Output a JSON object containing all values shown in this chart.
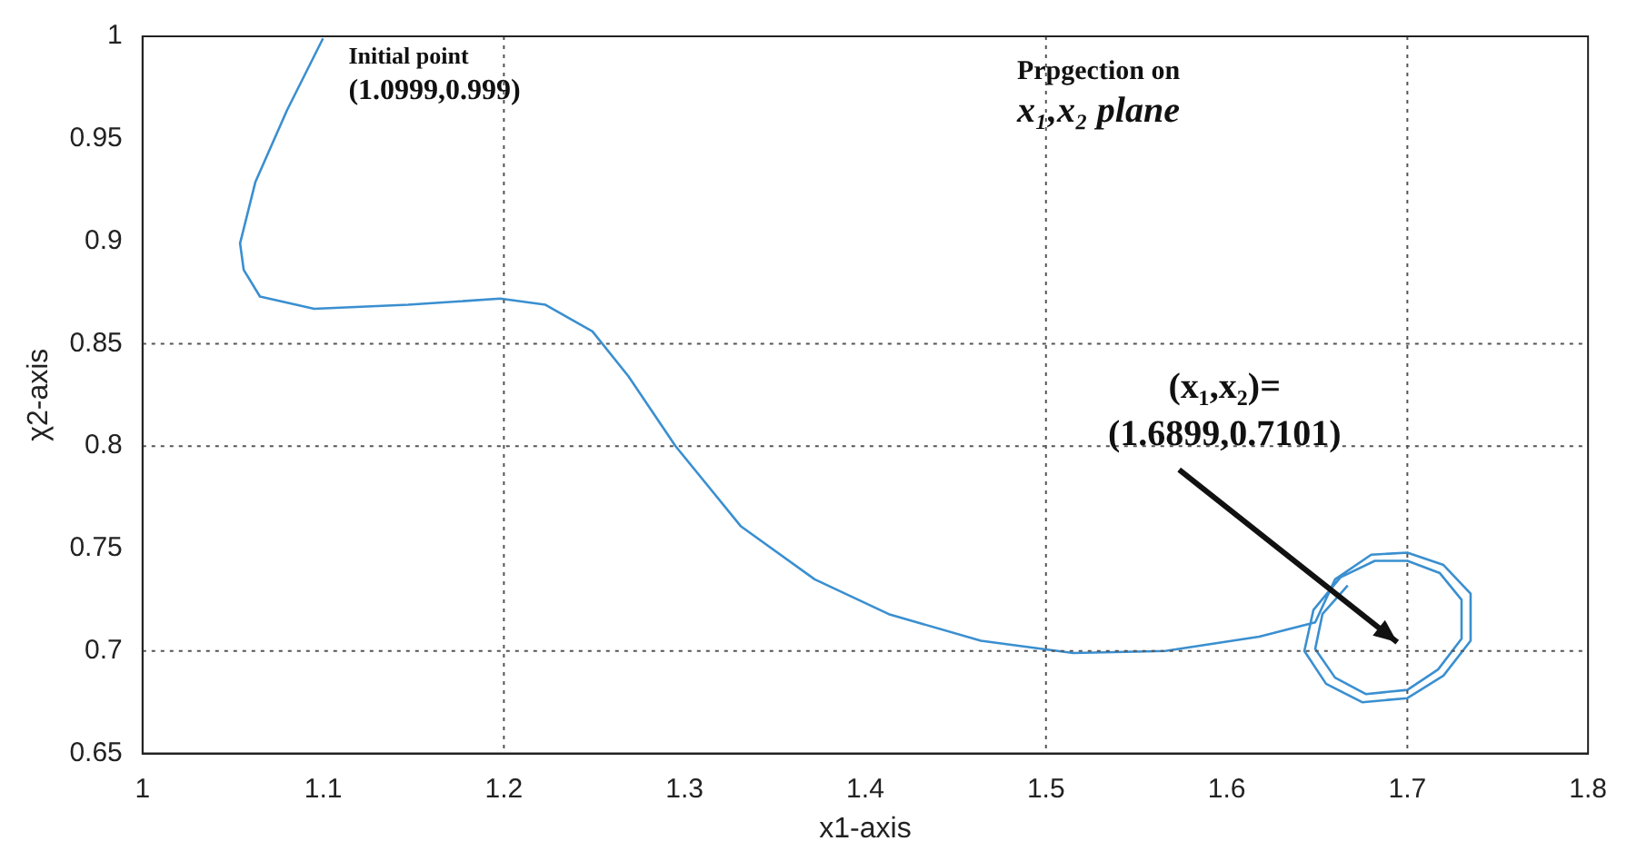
{
  "chart_data": {
    "type": "line",
    "xlabel": "x1-axis",
    "ylabel": "χ2-axis",
    "xlim": [
      1,
      1.8
    ],
    "xticks": [
      1,
      1.1,
      1.2,
      1.3,
      1.4,
      1.5,
      1.6,
      1.7,
      1.8
    ],
    "ylim": [
      0.65,
      1
    ],
    "yticks": [
      0.65,
      0.7,
      0.75,
      0.8,
      0.85,
      0.9,
      0.95,
      1
    ],
    "grid": false,
    "legend": false,
    "marker": "none",
    "line_style": "solid",
    "ref_lines": [
      {
        "axis": "x",
        "value": 1.2,
        "color": "#555555",
        "line_style": "dotted"
      },
      {
        "axis": "x",
        "value": 1.5,
        "color": "#555555",
        "line_style": "dotted"
      },
      {
        "axis": "x",
        "value": 1.7,
        "color": "#555555",
        "line_style": "dotted"
      },
      {
        "axis": "y",
        "value": 0.85,
        "color": "#555555",
        "line_style": "dotted"
      },
      {
        "axis": "y",
        "value": 0.8,
        "color": "#555555",
        "line_style": "dotted"
      },
      {
        "axis": "y",
        "value": 0.7,
        "color": "#555555",
        "line_style": "dotted"
      }
    ],
    "annotations": [
      {
        "text": "Initial point\n(1.0999,0.999)",
        "x": 1.0999,
        "y": 0.999
      },
      "Prpgection on\nx₁,x₂ plane",
      "(x₁,x₂)=\n(1.6899,0.7101)"
    ],
    "series": [
      {
        "color": "#3a8fd0",
        "x": [
          1.0999,
          1.08,
          1.0625,
          1.054,
          1.056,
          1.065,
          1.095,
          1.147,
          1.198,
          1.223,
          1.249,
          1.269,
          1.295,
          1.331,
          1.372,
          1.413,
          1.464,
          1.515,
          1.566,
          1.618,
          1.649,
          1.66,
          1.68,
          1.7,
          1.72,
          1.735,
          1.735,
          1.72,
          1.7,
          1.675,
          1.655,
          1.643,
          1.648,
          1.663,
          1.682,
          1.7,
          1.718,
          1.73,
          1.73,
          1.717,
          1.7,
          1.677,
          1.66,
          1.649,
          1.653,
          1.667
        ],
        "values": [
          0.999,
          0.964,
          0.929,
          0.899,
          0.886,
          0.873,
          0.867,
          0.869,
          0.872,
          0.869,
          0.856,
          0.834,
          0.8,
          0.761,
          0.735,
          0.718,
          0.705,
          0.699,
          0.7,
          0.707,
          0.714,
          0.735,
          0.747,
          0.748,
          0.742,
          0.728,
          0.705,
          0.688,
          0.677,
          0.675,
          0.684,
          0.7,
          0.72,
          0.736,
          0.744,
          0.744,
          0.738,
          0.725,
          0.706,
          0.691,
          0.681,
          0.679,
          0.687,
          0.701,
          0.718,
          0.732
        ]
      }
    ]
  }
}
